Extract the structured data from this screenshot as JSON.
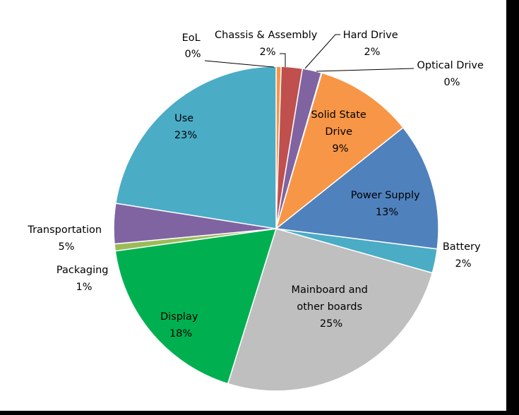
{
  "chart_data": {
    "type": "pie",
    "title": "",
    "slices": [
      {
        "label": "EoL",
        "value": 0,
        "display": "0%",
        "start_pct": 0.0,
        "end_pct": 0.5,
        "color": "#f79646"
      },
      {
        "label": "Chassis & Assembly",
        "value": 2,
        "display": "2%",
        "start_pct": 0.5,
        "end_pct": 2.6,
        "color": "#c0504d"
      },
      {
        "label": "Hard Drive",
        "value": 2,
        "display": "2%",
        "start_pct": 2.6,
        "end_pct": 4.5,
        "color": "#8064a2"
      },
      {
        "label": "Optical Drive",
        "value": 0,
        "display": "0%",
        "start_pct": 4.5,
        "end_pct": 4.55,
        "color": "#4bacc6"
      },
      {
        "label": "Solid State Drive",
        "value": 9,
        "display": "9%",
        "start_pct": 4.55,
        "end_pct": 14.3,
        "color": "#f79646"
      },
      {
        "label": "Power Supply",
        "value": 13,
        "display": "13%",
        "start_pct": 14.3,
        "end_pct": 27.0,
        "color": "#4f81bd"
      },
      {
        "label": "Battery",
        "value": 2,
        "display": "2%",
        "start_pct": 27.0,
        "end_pct": 29.4,
        "color": "#4bacc6"
      },
      {
        "label": "Mainboard and other boards",
        "value": 25,
        "display": "25%",
        "start_pct": 29.4,
        "end_pct": 54.8,
        "color": "#bfbfbf"
      },
      {
        "label": "Display",
        "value": 18,
        "display": "18%",
        "start_pct": 54.8,
        "end_pct": 72.8,
        "color": "#00b050"
      },
      {
        "label": "Packaging",
        "value": 1,
        "display": "1%",
        "start_pct": 72.8,
        "end_pct": 73.5,
        "color": "#9bbb59"
      },
      {
        "label": "Transportation",
        "value": 5,
        "display": "5%",
        "start_pct": 73.5,
        "end_pct": 77.5,
        "color": "#8064a2"
      },
      {
        "label": "Use",
        "value": 23,
        "display": "23%",
        "start_pct": 77.5,
        "end_pct": 100.0,
        "color": "#4bacc6"
      }
    ],
    "labels": {
      "eol": [
        "EoL",
        "0%"
      ],
      "chassis": [
        "Chassis & Assembly",
        "2%"
      ],
      "hard_drive": [
        "Hard Drive",
        "2%"
      ],
      "optical": [
        "Optical Drive",
        "0%"
      ],
      "ssd": [
        "Solid State",
        "Drive",
        "9%"
      ],
      "power": [
        "Power Supply",
        "13%"
      ],
      "battery": [
        "Battery",
        "2%"
      ],
      "mainboard": [
        "Mainboard and",
        "other boards",
        "25%"
      ],
      "display": [
        "Display",
        "18%"
      ],
      "packaging": [
        "Packaging",
        "1%"
      ],
      "transportation": [
        "Transportation",
        "5%"
      ],
      "use": [
        "Use",
        "23%"
      ]
    }
  }
}
